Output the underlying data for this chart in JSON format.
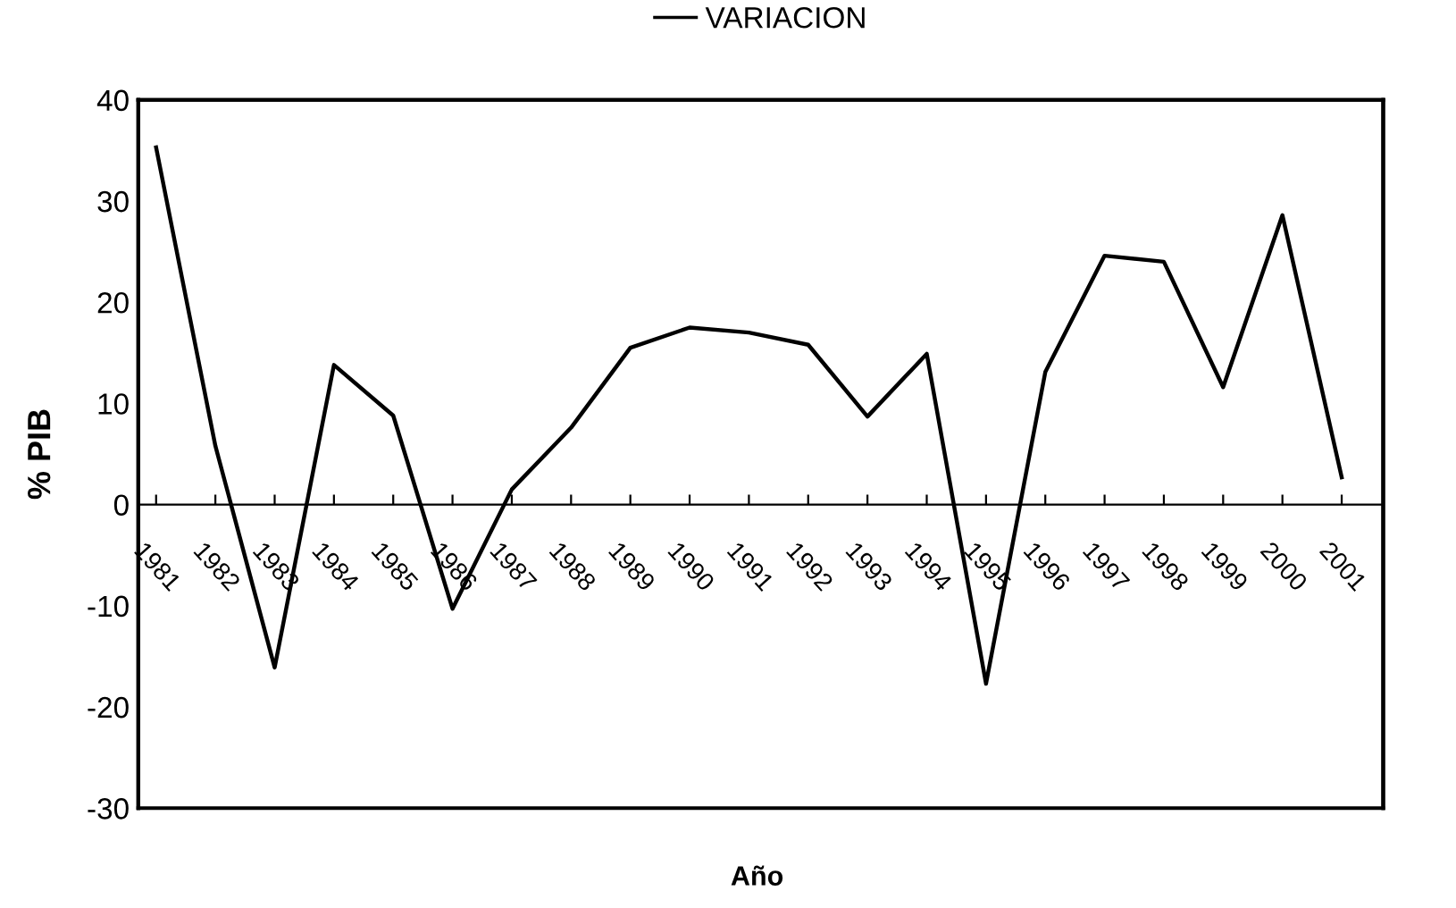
{
  "chart_data": {
    "type": "line",
    "xlabel": "Año",
    "ylabel": "% PIB",
    "categories": [
      "1981",
      "1982",
      "1983",
      "1984",
      "1985",
      "1986",
      "1987",
      "1988",
      "1989",
      "1990",
      "1991",
      "1992",
      "1993",
      "1994",
      "1995",
      "1996",
      "1997",
      "1998",
      "1999",
      "2000",
      "2001"
    ],
    "series": [
      {
        "name": "VARIACION",
        "color": "#000000",
        "values": [
          35.3,
          5.8,
          -16.1,
          13.8,
          8.8,
          -10.3,
          1.5,
          7.6,
          15.5,
          17.5,
          17.0,
          15.8,
          8.7,
          14.9,
          -17.7,
          13.1,
          24.6,
          24.0,
          11.6,
          28.6,
          2.7
        ]
      }
    ],
    "ylim": [
      -30,
      40
    ],
    "yticks": [
      -30,
      -20,
      -10,
      0,
      10,
      20,
      30,
      40
    ],
    "grid": false,
    "legend": "top",
    "marker": "none",
    "line_style": "solid"
  }
}
